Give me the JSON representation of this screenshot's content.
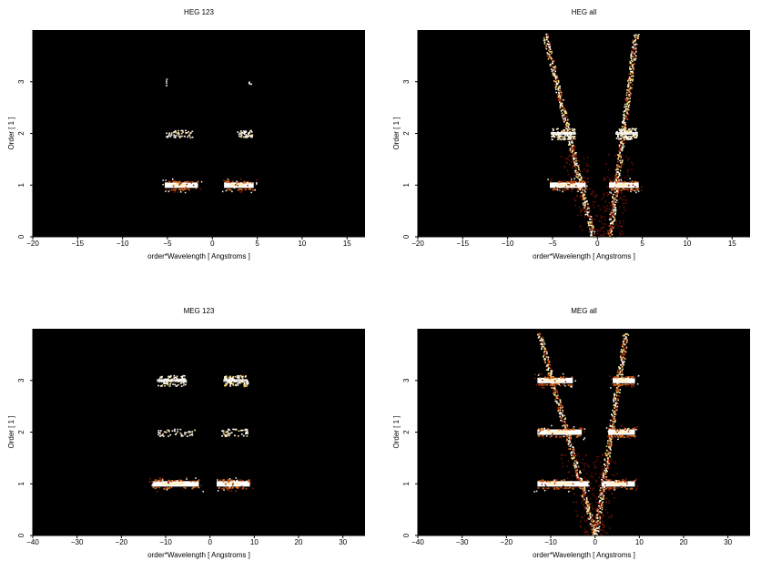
{
  "chart_data": [
    {
      "type": "heatmap",
      "title": "HEG 123",
      "xlabel": "order*Wavelength [ Angstroms ]",
      "ylabel": "Order [ 1 ]",
      "xlim": [
        -20,
        17
      ],
      "ylim": [
        0,
        4
      ],
      "xticks": [
        -20,
        -15,
        -10,
        -5,
        0,
        5,
        10,
        15
      ],
      "yticks": [
        0,
        1,
        2,
        3
      ],
      "background": "#000000",
      "bands": [
        {
          "order": 1,
          "x_ranges": [
            [
              -5.3,
              -1.6
            ],
            [
              1.3,
              4.6
            ]
          ],
          "intensity": "high"
        },
        {
          "order": 2,
          "x_ranges": [
            [
              -5.2,
              -2.2
            ],
            [
              2.7,
              4.4
            ]
          ],
          "intensity": "low"
        },
        {
          "order": 3,
          "x_ranges": [
            [
              -5.2,
              -5.0
            ],
            [
              4.0,
              4.3
            ]
          ],
          "intensity": "very-low"
        }
      ]
    },
    {
      "type": "heatmap",
      "title": "HEG all",
      "xlabel": "order*Wavelength [ Angstroms ]",
      "ylabel": "Order [ 1 ]",
      "xlim": [
        -20,
        17
      ],
      "ylim": [
        0,
        4
      ],
      "xticks": [
        -20,
        -15,
        -10,
        -5,
        0,
        5,
        10,
        15
      ],
      "yticks": [
        0,
        1,
        2,
        3
      ],
      "background": "#000000",
      "bands": [
        {
          "order": 1,
          "x_ranges": [
            [
              -5.3,
              -1.3
            ],
            [
              1.3,
              4.6
            ]
          ],
          "intensity": "high"
        },
        {
          "order": 2,
          "x_ranges": [
            [
              -5.2,
              -2.5
            ],
            [
              2.0,
              4.5
            ]
          ],
          "intensity": "medium"
        }
      ],
      "continuum_lines": [
        {
          "x_at_order_0": -0.5,
          "x_at_order_4": -6.0
        },
        {
          "x_at_order_0": 1.3,
          "x_at_order_4": 4.3
        }
      ]
    },
    {
      "type": "heatmap",
      "title": "MEG 123",
      "xlabel": "order*Wavelength [ Angstroms ]",
      "ylabel": "Order [ 1 ]",
      "xlim": [
        -40,
        35
      ],
      "ylim": [
        0,
        4
      ],
      "xticks": [
        -40,
        -30,
        -20,
        -10,
        0,
        10,
        20,
        30
      ],
      "yticks": [
        0,
        1,
        2,
        3
      ],
      "background": "#000000",
      "bands": [
        {
          "order": 1,
          "x_ranges": [
            [
              -13.0,
              -2.5
            ],
            [
              1.5,
              9.0
            ]
          ],
          "intensity": "high"
        },
        {
          "order": 2,
          "x_ranges": [
            [
              -12.0,
              -3.5
            ],
            [
              2.5,
              8.5
            ]
          ],
          "intensity": "low"
        },
        {
          "order": 3,
          "x_ranges": [
            [
              -12.0,
              -5.5
            ],
            [
              3.0,
              8.5
            ]
          ],
          "intensity": "medium"
        }
      ]
    },
    {
      "type": "heatmap",
      "title": "MEG all",
      "xlabel": "order*Wavelength [ Angstroms ]",
      "ylabel": "Order [ 1 ]",
      "xlim": [
        -40,
        35
      ],
      "ylim": [
        0,
        4
      ],
      "xticks": [
        -40,
        -30,
        -20,
        -10,
        0,
        10,
        20,
        30
      ],
      "yticks": [
        0,
        1,
        2,
        3
      ],
      "background": "#000000",
      "bands": [
        {
          "order": 1,
          "x_ranges": [
            [
              -13.0,
              -1.5
            ],
            [
              1.5,
              9.0
            ]
          ],
          "intensity": "high"
        },
        {
          "order": 2,
          "x_ranges": [
            [
              -13.0,
              -3.0
            ],
            [
              3.0,
              9.0
            ]
          ],
          "intensity": "high"
        },
        {
          "order": 3,
          "x_ranges": [
            [
              -13.0,
              -5.0
            ],
            [
              4.0,
              9.0
            ]
          ],
          "intensity": "high"
        }
      ],
      "continuum_lines": [
        {
          "x_at_order_0": 0.0,
          "x_at_order_4": -13.0
        },
        {
          "x_at_order_0": 0.0,
          "x_at_order_4": 7.0
        }
      ]
    }
  ]
}
